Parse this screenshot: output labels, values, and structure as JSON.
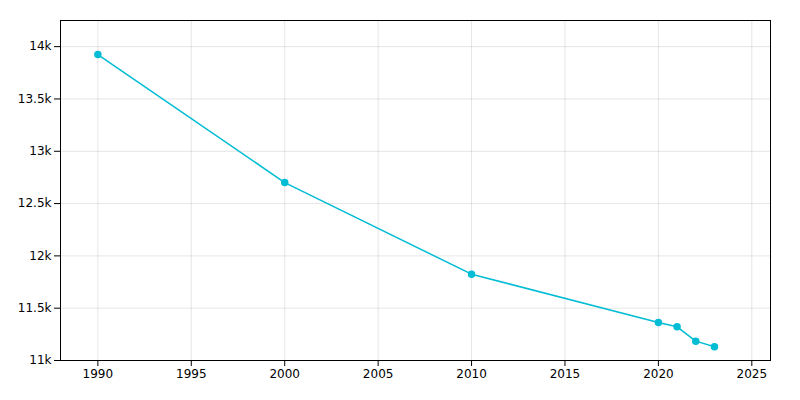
{
  "chart_data": {
    "type": "line",
    "x": [
      1990,
      2000,
      2010,
      2020,
      2021,
      2022,
      2023
    ],
    "values": [
      13924,
      12701,
      11825,
      11363,
      11322,
      11185,
      11131
    ],
    "color": "#00BCD4",
    "marker": "circle",
    "xlim": [
      1988,
      2026
    ],
    "xticks": [
      1990,
      1995,
      2000,
      2005,
      2010,
      2015,
      2020,
      2025
    ],
    "ylim": [
      11000,
      14250
    ],
    "yticks": [
      {
        "value": 11000,
        "label": "11k"
      },
      {
        "value": 11500,
        "label": "11.5k"
      },
      {
        "value": 12000,
        "label": "12k"
      },
      {
        "value": 12500,
        "label": "12.5k"
      },
      {
        "value": 13000,
        "label": "13k"
      },
      {
        "value": 13500,
        "label": "13.5k"
      },
      {
        "value": 14000,
        "label": "14k"
      }
    ],
    "grid": true
  }
}
